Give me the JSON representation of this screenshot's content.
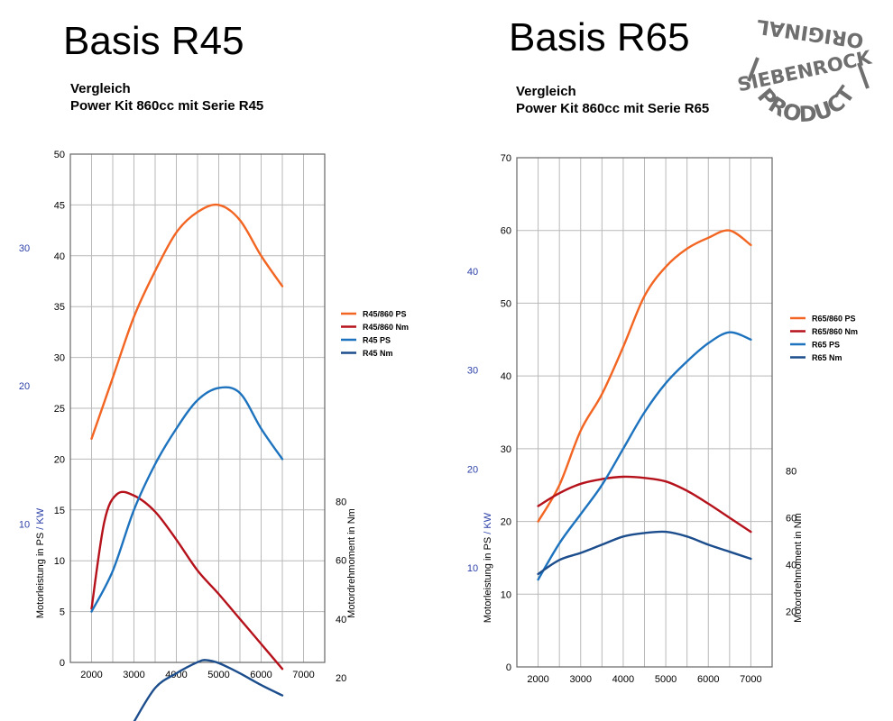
{
  "chart_data": [
    {
      "type": "line",
      "title": "Basis R45",
      "subtitle_lines": [
        "Vergleich",
        "Power Kit 860cc mit Serie R45"
      ],
      "xlabel": "",
      "ylabel_left_parts": [
        "Motorleistung in PS",
        " / ",
        "KW"
      ],
      "ylabel_right": "Motordrehmoment in Nm",
      "x_ticks": [
        2000,
        3000,
        4000,
        5000,
        6000,
        7000
      ],
      "xlim": [
        1500,
        7500
      ],
      "ylim": [
        0,
        50
      ],
      "y_ticks": [
        0,
        5,
        10,
        15,
        20,
        25,
        30,
        35,
        40,
        45,
        50
      ],
      "kw_ticks": [
        10,
        20,
        30
      ],
      "nm_ticks": [
        20,
        40,
        60,
        80
      ],
      "legend_position": "right",
      "grid": true,
      "series": [
        {
          "name": "R45/860 PS",
          "color": "#f26522",
          "axis": "ps",
          "x": [
            2000,
            2500,
            3000,
            3500,
            4000,
            4500,
            5000,
            5500,
            6000,
            6500
          ],
          "values": [
            22,
            28,
            34,
            38.5,
            42.3,
            44.3,
            45,
            43.5,
            40,
            37
          ]
        },
        {
          "name": "R45/860 Nm",
          "color": "#b5121b",
          "axis": "nm",
          "x": [
            2000,
            2300,
            2600,
            3000,
            3500,
            4000,
            4500,
            5000,
            5500,
            6000,
            6500
          ],
          "values": [
            43.5,
            73,
            82.5,
            82,
            76.5,
            67,
            56.5,
            48.5,
            40,
            31.5,
            23
          ]
        },
        {
          "name": "R45 PS",
          "color": "#1e73be",
          "axis": "ps",
          "x": [
            2000,
            2500,
            3000,
            3500,
            4000,
            4500,
            5000,
            5500,
            6000,
            6500
          ],
          "values": [
            5,
            9,
            15,
            19.5,
            23,
            25.8,
            27,
            26.5,
            23,
            20
          ]
        },
        {
          "name": "R45 Nm",
          "color": "#1c4d8c",
          "axis": "nm",
          "x": [
            3000,
            3500,
            4000,
            4500,
            4700,
            5000,
            5500,
            6000,
            6500
          ],
          "values": [
            5,
            16.5,
            21.5,
            25.3,
            26,
            25,
            21.5,
            17.5,
            14
          ]
        }
      ]
    },
    {
      "type": "line",
      "title": "Basis R65",
      "subtitle_lines": [
        "Vergleich",
        "Power Kit 860cc mit Serie R65"
      ],
      "xlabel": "",
      "ylabel_left_parts": [
        "Motorleistung in PS",
        " / ",
        "KW"
      ],
      "ylabel_right": "Motordrehmoment in Nm",
      "x_ticks": [
        2000,
        3000,
        4000,
        5000,
        6000,
        7000
      ],
      "xlim": [
        1500,
        7500
      ],
      "ylim": [
        0,
        70
      ],
      "y_ticks": [
        0,
        10,
        20,
        30,
        40,
        50,
        60,
        70
      ],
      "kw_ticks": [
        10,
        20,
        30,
        40
      ],
      "nm_ticks": [
        20,
        40,
        60,
        80
      ],
      "legend_position": "right",
      "grid": true,
      "series": [
        {
          "name": "R65/860 PS",
          "color": "#f26522",
          "axis": "ps",
          "x": [
            2000,
            2500,
            3000,
            3500,
            4000,
            4500,
            5000,
            5500,
            6000,
            6500,
            7000
          ],
          "values": [
            20,
            25,
            32.5,
            37.5,
            44,
            51,
            55,
            57.5,
            59,
            60,
            58
          ]
        },
        {
          "name": "R65/860 Nm",
          "color": "#b5121b",
          "axis": "nm",
          "x": [
            2000,
            2500,
            3000,
            3500,
            4000,
            4500,
            5000,
            5500,
            6000,
            6500,
            7000
          ],
          "values": [
            65,
            70.5,
            74.5,
            76.5,
            77.5,
            77,
            75.5,
            71.5,
            66,
            60,
            54
          ]
        },
        {
          "name": "R65 PS",
          "color": "#1e73be",
          "axis": "ps",
          "x": [
            2000,
            2500,
            3000,
            3500,
            4000,
            4500,
            5000,
            5500,
            6000,
            6500,
            7000
          ],
          "values": [
            12,
            17,
            21,
            25,
            30,
            35,
            39,
            42,
            44.5,
            46,
            45
          ]
        },
        {
          "name": "R65 Nm",
          "color": "#1c4d8c",
          "axis": "nm",
          "x": [
            2000,
            2500,
            3000,
            3500,
            4000,
            4500,
            5000,
            5500,
            6000,
            6500,
            7000
          ],
          "values": [
            36,
            42,
            45,
            48.5,
            52,
            53.5,
            54,
            52,
            48.5,
            45.5,
            42.5
          ]
        }
      ]
    }
  ],
  "stamp": {
    "top_text": "ORIGINAL",
    "middle_text": "SIEBENROCK",
    "bottom_text": "PRODUCT"
  }
}
